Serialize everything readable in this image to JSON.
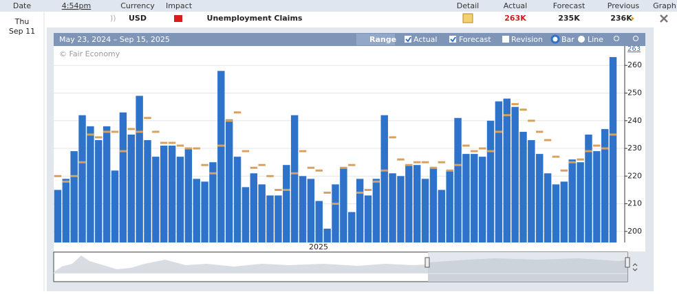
{
  "header": {
    "columns": [
      "Date",
      "4:54pm",
      "Currency",
      "Impact",
      "Detail",
      "Actual",
      "Forecast",
      "Previous",
      "Graph"
    ]
  },
  "row": {
    "day": "Thu",
    "date": "Sep 11",
    "currency": "USD",
    "event": "Unemployment Claims",
    "actual": "263K",
    "forecast": "235K",
    "previous": "236K"
  },
  "chart_data": {
    "type": "bar",
    "date_range": "May 23, 2024 – Sep 15, 2025",
    "watermark": "© Fair Economy",
    "year_label": "2025",
    "controls": {
      "range": "Range",
      "revision": "Revision",
      "bar": "Bar",
      "line": "Line"
    },
    "ylim": [
      196,
      267
    ],
    "yticks": [
      200,
      210,
      220,
      230,
      240,
      250,
      260
    ],
    "grid": true,
    "series": [
      {
        "name": "Actual",
        "color": "#2f72c9",
        "values": [
          215,
          219,
          229,
          242,
          238,
          233,
          238,
          222,
          243,
          235,
          249,
          233,
          227,
          231,
          231,
          227,
          230,
          219,
          218,
          225,
          258,
          240.5,
          227,
          216,
          221,
          217,
          213,
          213,
          224,
          242,
          220,
          219,
          211,
          201,
          217,
          223,
          207,
          219,
          213,
          219,
          242,
          221,
          220,
          224,
          224,
          219,
          223,
          215,
          222,
          241,
          228,
          228,
          227,
          240,
          247,
          248,
          245,
          236,
          233,
          228,
          221,
          217,
          218,
          226,
          225,
          235,
          229,
          237,
          263
        ]
      },
      {
        "name": "Forecast",
        "color": "#d9a15f",
        "values": [
          220,
          218,
          220,
          225,
          235,
          234,
          236,
          236,
          229,
          237,
          236,
          241,
          236,
          232,
          232,
          231,
          230,
          230,
          224,
          221,
          231,
          240,
          243,
          229,
          223,
          224,
          220,
          215,
          215,
          221,
          229,
          223,
          222,
          214,
          210,
          223,
          224,
          214,
          215,
          218,
          222,
          234,
          226,
          224,
          225,
          225,
          223,
          225,
          222,
          224,
          231,
          229,
          230,
          229,
          236,
          242,
          246,
          244,
          240,
          236,
          233,
          227,
          222,
          225,
          226,
          229,
          231,
          230,
          235
        ]
      }
    ]
  }
}
